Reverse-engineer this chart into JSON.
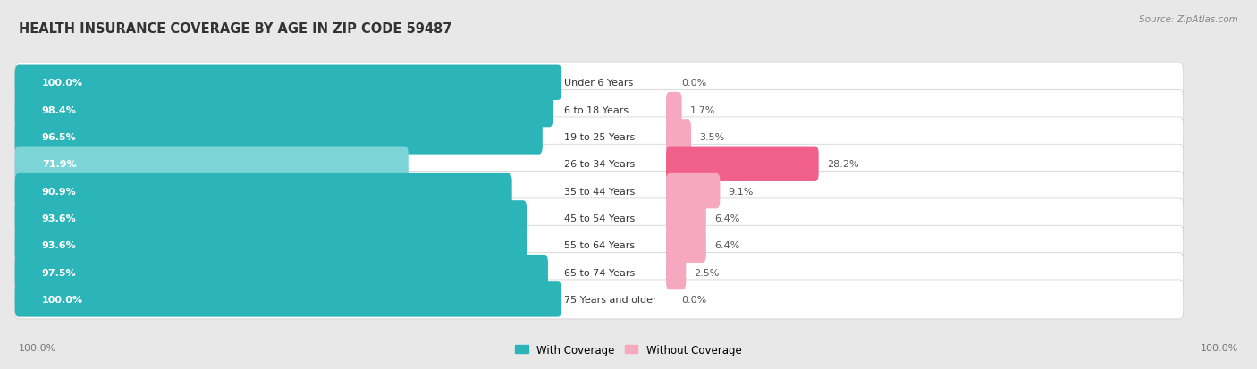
{
  "title": "HEALTH INSURANCE COVERAGE BY AGE IN ZIP CODE 59487",
  "source": "Source: ZipAtlas.com",
  "categories": [
    "Under 6 Years",
    "6 to 18 Years",
    "19 to 25 Years",
    "26 to 34 Years",
    "35 to 44 Years",
    "45 to 54 Years",
    "55 to 64 Years",
    "65 to 74 Years",
    "75 Years and older"
  ],
  "with_coverage": [
    100.0,
    98.4,
    96.5,
    71.9,
    90.9,
    93.6,
    93.6,
    97.5,
    100.0
  ],
  "without_coverage": [
    0.0,
    1.7,
    3.5,
    28.2,
    9.1,
    6.4,
    6.4,
    2.5,
    0.0
  ],
  "color_with_dark": "#2bb5b8",
  "color_with_light": "#7dd4d6",
  "color_without_high": "#f0608a",
  "color_without_low": "#f5a8c0",
  "bg_color": "#e8e8e8",
  "bar_bg": "#ffffff",
  "title_fontsize": 10.5,
  "label_fontsize": 8.0,
  "value_fontsize": 8.0,
  "tick_fontsize": 8.0,
  "legend_fontsize": 8.5,
  "source_fontsize": 7.5
}
